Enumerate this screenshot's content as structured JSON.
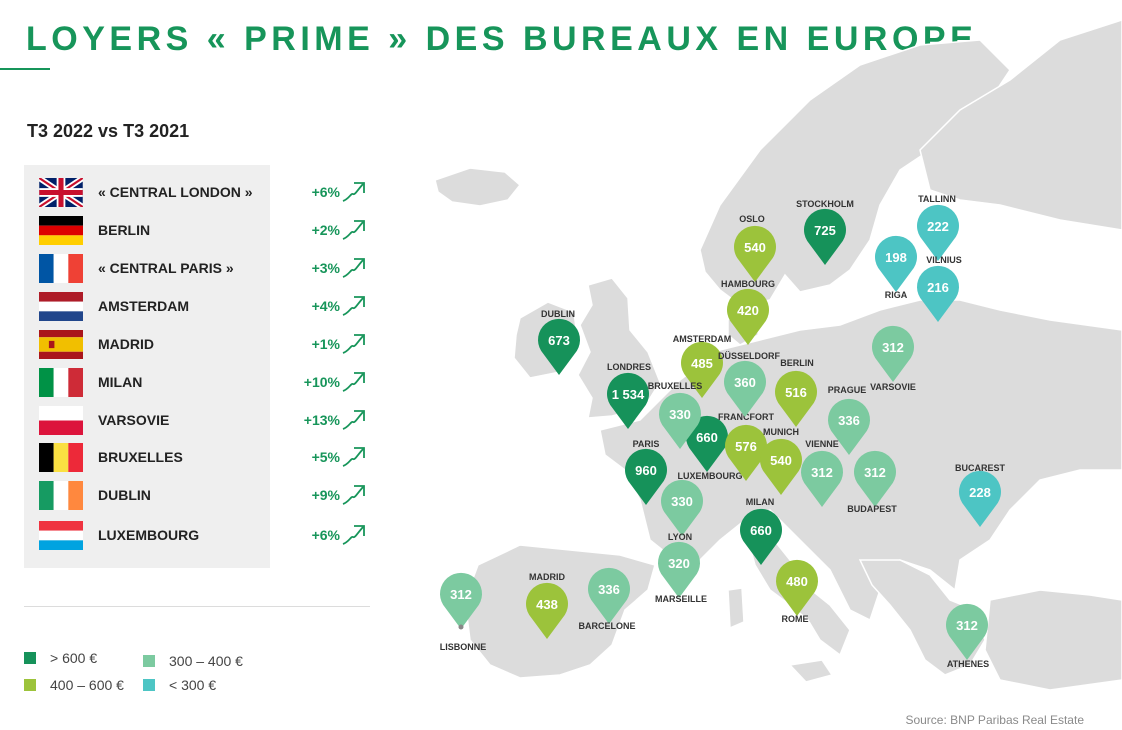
{
  "title": "LOYERS « PRIME » DES BUREAUX EN EUROPE",
  "subtitle": "T3 2022 vs T3 2021",
  "colors": {
    "dark_green": "#16925a",
    "light_green": "#9cc33b",
    "mint": "#7ccaa0",
    "teal": "#4dc5c4",
    "accent": "#17955a"
  },
  "table": [
    {
      "flag": "uk-flag-icon",
      "city": "« CENTRAL LONDON »",
      "change": "+6%"
    },
    {
      "flag": "germany-flag-icon",
      "city": "BERLIN",
      "change": "+2%"
    },
    {
      "flag": "france-flag-icon",
      "city": "« CENTRAL PARIS »",
      "change": "+3%"
    },
    {
      "flag": "netherlands-flag-icon",
      "city": "AMSTERDAM",
      "change": "+4%"
    },
    {
      "flag": "spain-flag-icon",
      "city": "MADRID",
      "change": "+1%"
    },
    {
      "flag": "italy-flag-icon",
      "city": "MILAN",
      "change": "+10%"
    },
    {
      "flag": "poland-flag-icon",
      "city": "VARSOVIE",
      "change": "+13%"
    },
    {
      "flag": "belgium-flag-icon",
      "city": "BRUXELLES",
      "change": "+5%"
    },
    {
      "flag": "ireland-flag-icon",
      "city": "DUBLIN",
      "change": "+9%"
    },
    {
      "flag": "luxembourg-flag-icon",
      "city": "LUXEMBOURG",
      "change": "+6%"
    }
  ],
  "legend": [
    {
      "label": "> 600 €",
      "color": "#16925a"
    },
    {
      "label": "300 – 400 €",
      "color": "#7ccaa0"
    },
    {
      "label": "400 – 600 €",
      "color": "#9cc33b"
    },
    {
      "label": "< 300 €",
      "color": "#4dc5c4"
    }
  ],
  "markers": [
    {
      "city": "DUBLIN",
      "value": "673",
      "category": "dark_green"
    },
    {
      "city": "LONDRES",
      "value": "1 534",
      "category": "dark_green"
    },
    {
      "city": "PARIS",
      "value": "960",
      "category": "dark_green"
    },
    {
      "city": "LUXEMBOURG",
      "value": "660",
      "category": "dark_green"
    },
    {
      "city": "MILAN",
      "value": "660",
      "category": "dark_green"
    },
    {
      "city": "STOCKHOLM",
      "value": "725",
      "category": "dark_green"
    },
    {
      "city": "OSLO",
      "value": "540",
      "category": "light_green"
    },
    {
      "city": "HAMBOURG",
      "value": "420",
      "category": "light_green"
    },
    {
      "city": "AMSTERDAM",
      "value": "485",
      "category": "light_green"
    },
    {
      "city": "BERLIN",
      "value": "516",
      "category": "light_green"
    },
    {
      "city": "FRANCFORT",
      "value": "576",
      "category": "light_green"
    },
    {
      "city": "MUNICH",
      "value": "540",
      "category": "light_green"
    },
    {
      "city": "MADRID",
      "value": "438",
      "category": "light_green"
    },
    {
      "city": "ROME",
      "value": "480",
      "category": "light_green"
    },
    {
      "city": "DÜSSELDORF",
      "value": "360",
      "category": "mint"
    },
    {
      "city": "BRUXELLES",
      "value": "330",
      "category": "mint"
    },
    {
      "city": "PRAGUE",
      "value": "336",
      "category": "mint"
    },
    {
      "city": "VARSOVIE",
      "value": "312",
      "category": "mint"
    },
    {
      "city": "VIENNE",
      "value": "312",
      "category": "mint"
    },
    {
      "city": "BUDAPEST",
      "value": "312",
      "category": "mint"
    },
    {
      "city": "LYON",
      "value": "330",
      "category": "mint"
    },
    {
      "city": "MARSEILLE",
      "value": "320",
      "category": "mint"
    },
    {
      "city": "BARCELONE",
      "value": "336",
      "category": "mint"
    },
    {
      "city": "LISBONNE",
      "value": "312",
      "category": "mint"
    },
    {
      "city": "ATHENES",
      "value": "312",
      "category": "mint"
    },
    {
      "city": "TALLINN",
      "value": "222",
      "category": "teal"
    },
    {
      "city": "RIGA",
      "value": "198",
      "category": "teal"
    },
    {
      "city": "VILNIUS",
      "value": "216",
      "category": "teal"
    },
    {
      "city": "BUCAREST",
      "value": "228",
      "category": "teal"
    }
  ],
  "source": "Source: BNP Paribas Real Estate"
}
